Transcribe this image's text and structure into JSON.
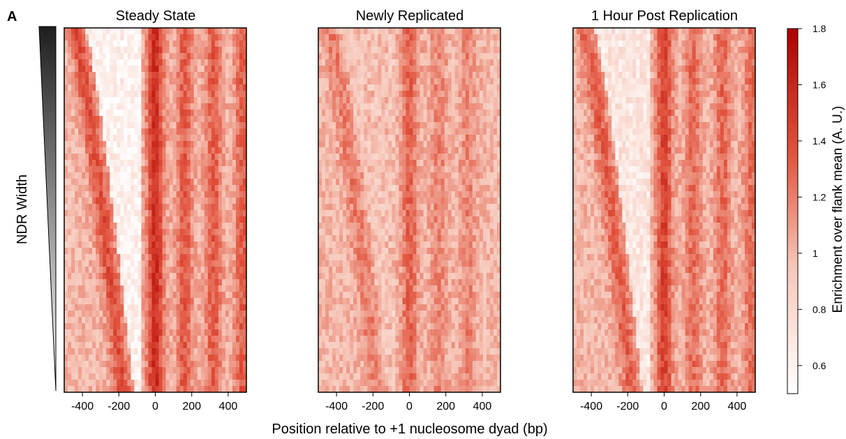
{
  "figure": {
    "panel_letter": "A",
    "row_axis_label": "NDR Width"
  },
  "colorbar": {
    "label": "Enrichment over flank mean (A. U.)",
    "range": [
      0.5,
      1.8
    ],
    "ticks": [
      "0.6",
      "0.8",
      "1",
      "1.2",
      "1.4",
      "1.6",
      "1.8"
    ],
    "tick_values": [
      0.6,
      0.8,
      1.0,
      1.2,
      1.4,
      1.6,
      1.8
    ],
    "color_low": "#ffffff",
    "color_high": "#b00000"
  },
  "chart_data": [
    {
      "type": "heatmap",
      "title": "Steady State",
      "xlabel": "Position relative to +1 nucleosome dyad (bp)",
      "ylabel": "NDR Width",
      "xlim": [
        -500,
        500
      ],
      "x_ticks": [
        -400,
        -200,
        0,
        200,
        400
      ],
      "x_tick_labels": [
        "-400",
        "-200",
        "0",
        "200",
        "400"
      ],
      "rows_sorted_by": "NDR width (narrow at top, wide at bottom)",
      "ndr_left_edge_bp": [
        -380,
        -120
      ],
      "peak_positions_bp": [
        0,
        160,
        320,
        480
      ],
      "peak_enrichment": 1.55,
      "ndr_enrichment": 0.55
    },
    {
      "type": "heatmap",
      "title": "Newly Replicated",
      "xlabel": "Position relative to +1 nucleosome dyad (bp)",
      "xlim": [
        -500,
        500
      ],
      "x_ticks": [
        -400,
        -200,
        0,
        200,
        400
      ],
      "x_tick_labels": [
        "-400",
        "-200",
        "0",
        "200",
        "400"
      ],
      "rows_sorted_by": "NDR width (narrow at top, wide at bottom)",
      "ndr_left_edge_bp": [
        -380,
        -120
      ],
      "peak_positions_bp": [
        0,
        160,
        320
      ],
      "peak_enrichment": 1.3,
      "ndr_enrichment": 0.9
    },
    {
      "type": "heatmap",
      "title": "1 Hour Post Replication",
      "xlabel": "Position relative to +1 nucleosome dyad (bp)",
      "xlim": [
        -500,
        500
      ],
      "x_ticks": [
        -400,
        -200,
        0,
        200,
        400
      ],
      "x_tick_labels": [
        "-400",
        "-200",
        "0",
        "200",
        "400"
      ],
      "rows_sorted_by": "NDR width (narrow at top, wide at bottom)",
      "ndr_left_edge_bp": [
        -380,
        -120
      ],
      "peak_positions_bp": [
        0,
        160,
        320,
        480
      ],
      "peak_enrichment": 1.45,
      "ndr_enrichment": 0.65
    }
  ]
}
